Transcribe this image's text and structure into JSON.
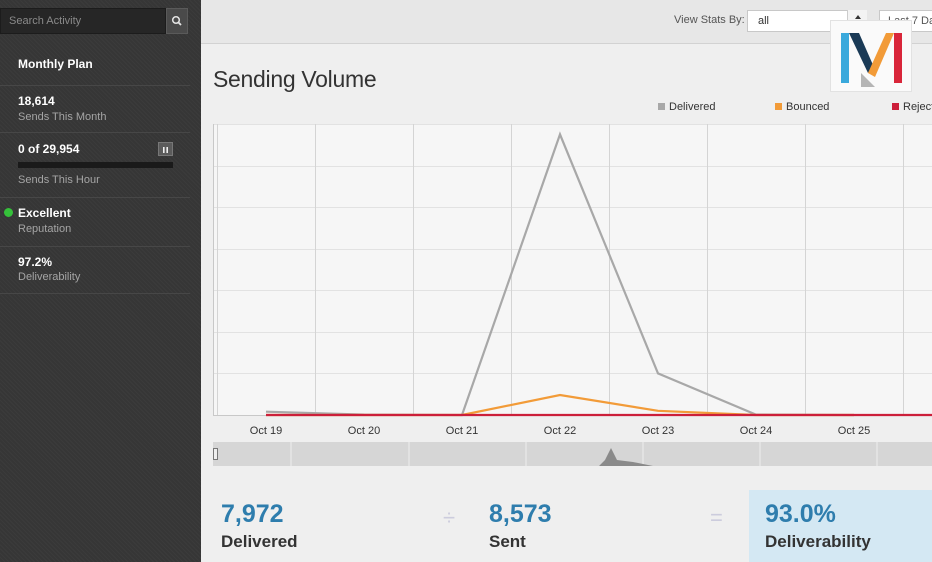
{
  "sidebar": {
    "search_placeholder": "Search Activity",
    "monthly_plan": "Monthly Plan",
    "sends_month_value": "18,614",
    "sends_month_label": "Sends This Month",
    "sends_hour_value": "0 of 29,954",
    "sends_hour_progress": 0,
    "sends_hour_label": "Sends This Hour",
    "reputation_value": "Excellent",
    "reputation_label": "Reputation",
    "reputation_color": "#35c13a",
    "deliverability_value": "97.2%",
    "deliverability_label": "Deliverability"
  },
  "toolbar": {
    "view_stats_label": "View Stats By:",
    "view_stats_value": "all",
    "range_value": "Last 7 Da"
  },
  "main": {
    "title": "Sending Volume"
  },
  "chart_data": {
    "type": "line",
    "categories": [
      "Oct 19",
      "Oct 20",
      "Oct 21",
      "Oct 22",
      "Oct 23",
      "Oct 24",
      "Oct 25"
    ],
    "ylim": [
      0,
      7000
    ],
    "grid": true,
    "legend_position": "top-right",
    "series": [
      {
        "name": "Delivered",
        "color": "#a8a8a8",
        "values": [
          80,
          10,
          0,
          6750,
          1000,
          10,
          0
        ]
      },
      {
        "name": "Bounced",
        "color": "#f29b38",
        "values": [
          0,
          0,
          0,
          480,
          100,
          0,
          0
        ]
      },
      {
        "name": "Rejected",
        "color": "#cc1f3a",
        "values": [
          0,
          0,
          0,
          0,
          0,
          0,
          0
        ]
      }
    ]
  },
  "summary": {
    "delivered_value": "7,972",
    "delivered_label": "Delivered",
    "divide_op": "÷",
    "sent_value": "8,573",
    "sent_label": "Sent",
    "equals_op": "=",
    "deliverability_value": "93.0%",
    "deliverability_label": "Deliverability"
  },
  "icons": {
    "search": "search-icon",
    "pause": "pause-icon",
    "logo": "mandrill-logo"
  }
}
